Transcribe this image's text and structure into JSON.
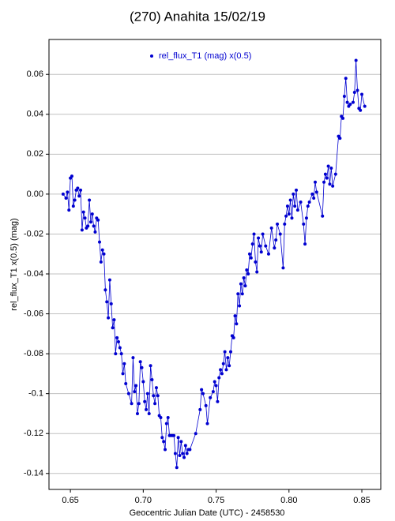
{
  "chart_data": {
    "type": "line",
    "title": "(270) Anahita 15/02/19",
    "x_label": "Geocentric Julian Date (UTC) - 2458530",
    "y_label": "rel_flux_T1 x(0.5) (mag)",
    "legend": "top",
    "grid": true,
    "xlim": [
      0.6353,
      0.863
    ],
    "ylim": [
      -0.148,
      0.0775
    ],
    "xticks": [
      0.65,
      {
        "value": 0.7,
        "label": "0.70"
      },
      0.75,
      {
        "value": 0.8,
        "label": "0.80"
      },
      0.85
    ],
    "yticks": [
      0.06,
      0.04,
      0.02,
      {
        "value": 0,
        "label": "0.00"
      },
      -0.02,
      -0.04,
      -0.06,
      -0.08,
      -0.1,
      -0.12,
      -0.14
    ],
    "series": [
      {
        "name": "rel_flux_T1 (mag) x(0.5)",
        "color": "#0000d0",
        "x": [
          0.645,
          0.647,
          0.648,
          0.649,
          0.65,
          0.651,
          0.652,
          0.653,
          0.654,
          0.655,
          0.656,
          0.657,
          0.658,
          0.659,
          0.66,
          0.661,
          0.662,
          0.663,
          0.664,
          0.665,
          0.666,
          0.667,
          0.668,
          0.669,
          0.67,
          0.671,
          0.672,
          0.673,
          0.674,
          0.675,
          0.676,
          0.677,
          0.678,
          0.679,
          0.68,
          0.681,
          0.682,
          0.683,
          0.684,
          0.685,
          0.686,
          0.687,
          0.688,
          0.69,
          0.692,
          0.693,
          0.694,
          0.695,
          0.696,
          0.697,
          0.698,
          0.699,
          0.7,
          0.701,
          0.702,
          0.703,
          0.704,
          0.705,
          0.706,
          0.707,
          0.708,
          0.709,
          0.71,
          0.711,
          0.712,
          0.713,
          0.714,
          0.715,
          0.716,
          0.717,
          0.718,
          0.719,
          0.72,
          0.721,
          0.722,
          0.723,
          0.724,
          0.725,
          0.726,
          0.727,
          0.728,
          0.729,
          0.73,
          0.731,
          0.732,
          0.736,
          0.739,
          0.74,
          0.741,
          0.743,
          0.744,
          0.746,
          0.748,
          0.749,
          0.75,
          0.751,
          0.752,
          0.753,
          0.754,
          0.755,
          0.756,
          0.757,
          0.758,
          0.759,
          0.76,
          0.761,
          0.762,
          0.763,
          0.764,
          0.765,
          0.766,
          0.767,
          0.768,
          0.769,
          0.77,
          0.771,
          0.772,
          0.773,
          0.774,
          0.775,
          0.776,
          0.777,
          0.778,
          0.779,
          0.78,
          0.781,
          0.782,
          0.784,
          0.786,
          0.788,
          0.79,
          0.791,
          0.792,
          0.794,
          0.796,
          0.797,
          0.798,
          0.799,
          0.8,
          0.801,
          0.802,
          0.803,
          0.804,
          0.805,
          0.806,
          0.808,
          0.81,
          0.811,
          0.812,
          0.813,
          0.814,
          0.816,
          0.817,
          0.818,
          0.819,
          0.823,
          0.824,
          0.825,
          0.826,
          0.827,
          0.828,
          0.829,
          0.83,
          0.832,
          0.834,
          0.835,
          0.836,
          0.837,
          0.838,
          0.839,
          0.84,
          0.841,
          0.842,
          0.844,
          0.845,
          0.846,
          0.847,
          0.848,
          0.849,
          0.85,
          0.852
        ],
        "values": [
          0.0,
          -0.002,
          0.001,
          -0.008,
          0.008,
          0.009,
          -0.006,
          -0.003,
          0.002,
          0.003,
          -0.001,
          0.002,
          -0.018,
          -0.009,
          -0.012,
          -0.017,
          -0.016,
          -0.003,
          -0.014,
          -0.01,
          -0.016,
          -0.019,
          -0.012,
          -0.013,
          -0.024,
          -0.034,
          -0.028,
          -0.03,
          -0.048,
          -0.054,
          -0.062,
          -0.043,
          -0.055,
          -0.067,
          -0.063,
          -0.08,
          -0.072,
          -0.074,
          -0.077,
          -0.08,
          -0.09,
          -0.085,
          -0.095,
          -0.1,
          -0.105,
          -0.082,
          -0.099,
          -0.096,
          -0.11,
          -0.105,
          -0.084,
          -0.087,
          -0.094,
          -0.104,
          -0.108,
          -0.1,
          -0.11,
          -0.086,
          -0.093,
          -0.101,
          -0.105,
          -0.097,
          -0.101,
          -0.111,
          -0.112,
          -0.122,
          -0.124,
          -0.128,
          -0.115,
          -0.112,
          -0.121,
          -0.121,
          -0.121,
          -0.121,
          -0.13,
          -0.137,
          -0.122,
          -0.131,
          -0.124,
          -0.13,
          -0.132,
          -0.126,
          -0.13,
          -0.128,
          -0.128,
          -0.12,
          -0.108,
          -0.098,
          -0.1,
          -0.106,
          -0.115,
          -0.102,
          -0.099,
          -0.094,
          -0.096,
          -0.104,
          -0.092,
          -0.088,
          -0.09,
          -0.085,
          -0.079,
          -0.088,
          -0.082,
          -0.086,
          -0.079,
          -0.071,
          -0.072,
          -0.061,
          -0.065,
          -0.05,
          -0.056,
          -0.045,
          -0.05,
          -0.042,
          -0.046,
          -0.038,
          -0.04,
          -0.03,
          -0.032,
          -0.025,
          -0.02,
          -0.034,
          -0.039,
          -0.022,
          -0.026,
          -0.029,
          -0.02,
          -0.026,
          -0.03,
          -0.017,
          -0.027,
          -0.023,
          -0.015,
          -0.02,
          -0.037,
          -0.015,
          -0.011,
          -0.006,
          -0.01,
          -0.003,
          -0.012,
          0.0,
          -0.006,
          0.002,
          -0.008,
          -0.004,
          -0.015,
          -0.025,
          -0.012,
          -0.006,
          -0.004,
          0.0,
          -0.002,
          0.006,
          0.001,
          -0.011,
          0.006,
          0.01,
          0.008,
          0.014,
          0.005,
          0.013,
          0.004,
          0.01,
          0.029,
          0.028,
          0.039,
          0.038,
          0.049,
          0.058,
          0.046,
          0.044,
          0.045,
          0.046,
          0.051,
          0.067,
          0.052,
          0.043,
          0.042,
          0.05,
          0.044
        ]
      }
    ]
  }
}
